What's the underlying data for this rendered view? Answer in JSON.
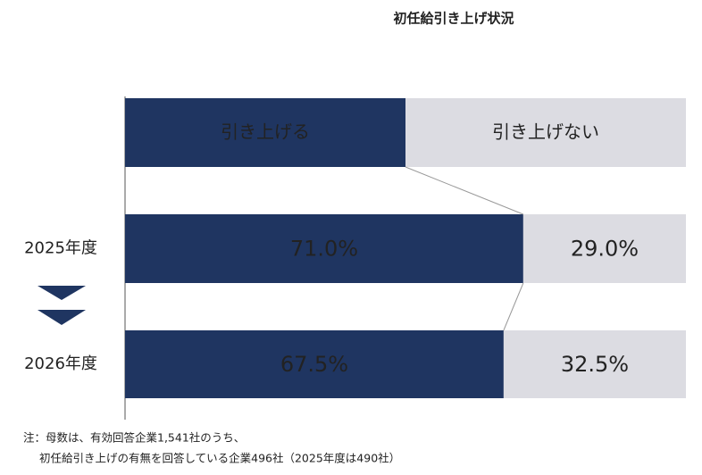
{
  "chart_data": {
    "type": "stacked-bar",
    "title": "初任給引き上げ状況",
    "categories": [
      "2025年度",
      "2026年度"
    ],
    "series": [
      {
        "name": "引き上げる",
        "color": "#1f3561",
        "values": [
          71.0,
          67.5
        ],
        "value_labels": [
          "71.0%",
          "67.5%"
        ]
      },
      {
        "name": "引き上げない",
        "color": "#dcdce2",
        "values": [
          29.0,
          32.5
        ],
        "value_labels": [
          "29.0%",
          "32.5%"
        ]
      }
    ],
    "notes": [
      "注：母数は、有効回答企業1,541社のうち、",
      "初任給引き上げの有無を回答している企業496社（2025年度は490社）"
    ]
  }
}
